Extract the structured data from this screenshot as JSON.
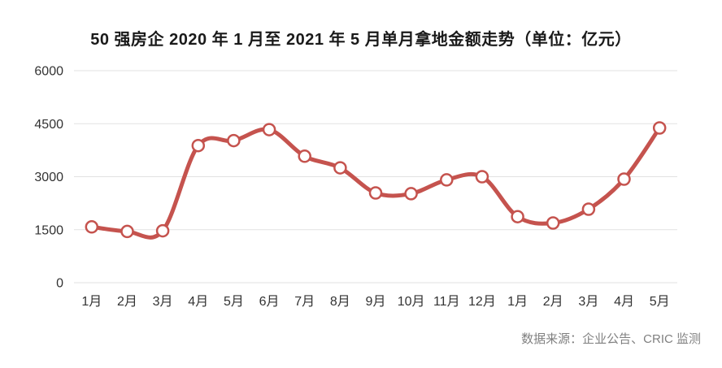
{
  "title": "50 强房企 2020 年 1 月至 2021 年 5 月单月拿地金额走势（单位：亿元）",
  "source_note": "数据来源：企业公告、CRIC 监测",
  "colors": {
    "line": "#c5534e",
    "marker_fill": "#ffffff",
    "grid": "#e2e2e2",
    "axis_text": "#333333",
    "title_text": "#1a1a1a",
    "source_text": "#808080",
    "background": "#ffffff"
  },
  "chart_data": {
    "type": "line",
    "smooth": true,
    "marker": "open-circle",
    "title": "50 强房企 2020 年 1 月至 2021 年 5 月单月拿地金额走势（单位：亿元）",
    "categories": [
      "1月",
      "2月",
      "3月",
      "4月",
      "5月",
      "6月",
      "7月",
      "8月",
      "9月",
      "10月",
      "11月",
      "12月",
      "1月",
      "2月",
      "3月",
      "4月",
      "5月"
    ],
    "values": [
      1580,
      1450,
      1470,
      3880,
      4020,
      4330,
      3580,
      3250,
      2540,
      2520,
      2910,
      3000,
      1870,
      1690,
      2080,
      2930,
      4380
    ],
    "xlabel": "",
    "ylabel": "",
    "ylim": [
      0,
      6000
    ],
    "yticks": [
      0,
      1500,
      3000,
      4500,
      6000
    ],
    "grid": "horizontal",
    "legend_position": "none",
    "annotation": "数据来源：企业公告、CRIC 监测"
  }
}
